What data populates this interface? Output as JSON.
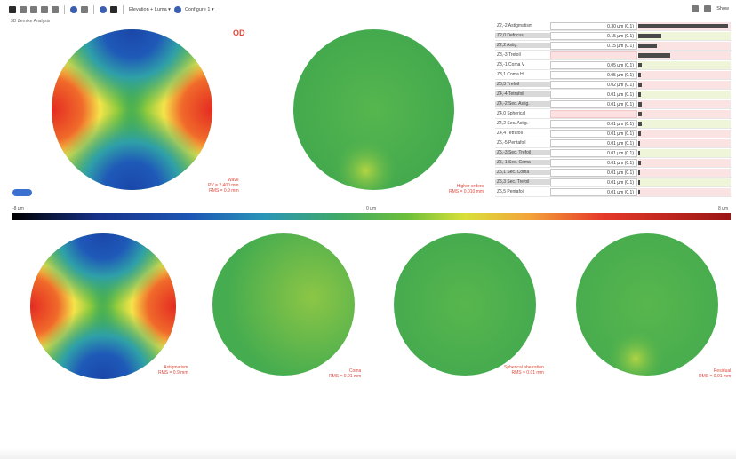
{
  "toolbar": {
    "dropdown1": "Elevation + Luma ▾",
    "dropdown2": "Configure 1 ▾",
    "right_label": "Show"
  },
  "header": {
    "subtitle": "3D Zernike Analysis"
  },
  "top": {
    "eye_label": "OD",
    "map1_label": [
      "Wave",
      "PV = 2.400 mm",
      "RMS = 0.9 mm"
    ],
    "map2_label": [
      "Higher orders",
      "RMS = 0.010 mm"
    ]
  },
  "panel": {
    "rows": [
      {
        "name": "Z2,-2 Astigmatism",
        "value": "0.30 µm (0.1)",
        "fill": 0.97,
        "shaded": false,
        "pink": false
      },
      {
        "name": "Z2,0 Defocus",
        "value": "0.15 µm (0.1)",
        "fill": 0.25,
        "shaded": true,
        "pink": false
      },
      {
        "name": "Z2,2 Astig.",
        "value": "0.15 µm (0.1)",
        "fill": 0.2,
        "shaded": true,
        "pink": false
      },
      {
        "name": "Z3,-3 Trefoil",
        "value": "",
        "fill": 0.35,
        "shaded": false,
        "pink": true
      },
      {
        "name": "Z3,-1 Coma V",
        "value": "0.05 µm (0.1)",
        "fill": 0.04,
        "shaded": false,
        "pink": false
      },
      {
        "name": "Z3,1 Coma H",
        "value": "0.05 µm (0.1)",
        "fill": 0.03,
        "shaded": false,
        "pink": false
      },
      {
        "name": "Z3,3 Trefoil",
        "value": "0.02 µm (0.1)",
        "fill": 0.04,
        "shaded": true,
        "pink": false
      },
      {
        "name": "Z4,-4 Tetrafoil",
        "value": "0.01 µm (0.1)",
        "fill": 0.03,
        "shaded": true,
        "pink": false
      },
      {
        "name": "Z4,-2 Sec. Astig.",
        "value": "0.01 µm (0.1)",
        "fill": 0.04,
        "shaded": true,
        "pink": false
      },
      {
        "name": "Z4,0 Spherical",
        "value": "",
        "fill": 0.04,
        "shaded": false,
        "pink": true
      },
      {
        "name": "Z4,2 Sec. Astig.",
        "value": "0.01 µm (0.1)",
        "fill": 0.04,
        "shaded": false,
        "pink": false
      },
      {
        "name": "Z4,4 Tetrafoil",
        "value": "0.01 µm (0.1)",
        "fill": 0.03,
        "shaded": false,
        "pink": false
      },
      {
        "name": "Z5,-5 Pentafoil",
        "value": "0.01 µm (0.1)",
        "fill": 0.02,
        "shaded": false,
        "pink": false
      },
      {
        "name": "Z5,-3 Sec. Trefoil",
        "value": "0.01 µm (0.1)",
        "fill": 0.02,
        "shaded": true,
        "pink": false
      },
      {
        "name": "Z5,-1 Sec. Coma",
        "value": "0.01 µm (0.1)",
        "fill": 0.03,
        "shaded": true,
        "pink": false
      },
      {
        "name": "Z5,1 Sec. Coma",
        "value": "0.01 µm (0.1)",
        "fill": 0.02,
        "shaded": true,
        "pink": false
      },
      {
        "name": "Z5,3 Sec. Trefoil",
        "value": "0.01 µm (0.1)",
        "fill": 0.02,
        "shaded": true,
        "pink": false
      },
      {
        "name": "Z5,5 Pentafoil",
        "value": "0.01 µm (0.1)",
        "fill": 0.02,
        "shaded": false,
        "pink": false
      }
    ]
  },
  "scale": {
    "min": "-8 µm",
    "mid": "0 µm",
    "max": "8 µm"
  },
  "bottom": {
    "labels": [
      [
        "Astigmatism",
        "RMS = 0.9 mm"
      ],
      [
        "Coma",
        "RMS = 0.01 mm"
      ],
      [
        "Spherical aberration",
        "RMS = 0.01 mm"
      ],
      [
        "Residual",
        "RMS = 0.01 mm"
      ]
    ]
  },
  "colors": {
    "accent": "#e04a3c",
    "panel_bar": "#4a4a4a"
  }
}
